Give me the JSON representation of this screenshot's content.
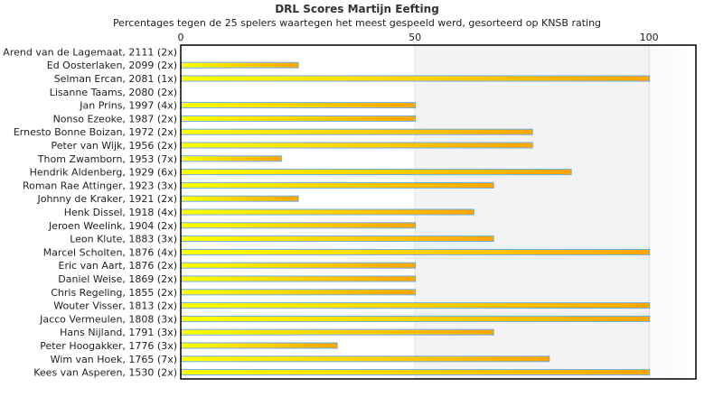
{
  "chart_data": {
    "type": "bar",
    "orientation": "horizontal",
    "title": "DRL Scores Martijn Eefting",
    "subtitle": "Percentages tegen de 25 spelers waartegen het meest gespeeld werd, gesorteerd op KNSB rating",
    "xlim": [
      0,
      110
    ],
    "xticks": [
      "0",
      "50",
      "100"
    ],
    "xtick_values": [
      0,
      50,
      100
    ],
    "categories": [
      "Arend van de Lagemaat, 2111 (2x)",
      "Ed Oosterlaken, 2099 (2x)",
      "Selman Ercan, 2081 (1x)",
      "Lisanne Taams, 2080 (2x)",
      "Jan Prins, 1997 (4x)",
      "Nonso Ezeoke, 1987 (2x)",
      "Ernesto Bonne Boizan, 1972 (2x)",
      "Peter van Wijk, 1956 (2x)",
      "Thom Zwamborn, 1953 (7x)",
      "Hendrik Aldenberg, 1929 (6x)",
      "Roman Rae Attinger, 1923 (3x)",
      "Johnny de Kraker, 1921 (2x)",
      "Henk Dissel, 1918 (4x)",
      "Jeroen Weelink, 1904 (2x)",
      "Leon Klute, 1883 (3x)",
      "Marcel Scholten, 1876 (4x)",
      "Eric van Aart, 1876 (2x)",
      "Daniel Weise, 1869 (2x)",
      "Chris Regeling, 1855 (2x)",
      "Wouter Visser, 1813 (2x)",
      "Jacco Vermeulen, 1808 (3x)",
      "Hans Nijland, 1791 (3x)",
      "Peter Hoogakker, 1776 (3x)",
      "Wim van Hoek, 1765 (7x)",
      "Kees van Asperen, 1530 (2x)"
    ],
    "values": [
      0,
      25,
      100,
      0,
      50,
      50,
      75,
      75,
      21.4,
      83.3,
      66.7,
      25,
      62.5,
      50,
      66.7,
      100,
      50,
      50,
      50,
      100,
      100,
      66.7,
      33.3,
      78.6,
      100
    ],
    "colors": {
      "bar_start": "#ffff00",
      "bar_end": "#ffa500",
      "bar_border": "#6aaee8",
      "band_mid": "#f3f3f3",
      "band_high": "#f5f9fc"
    }
  }
}
